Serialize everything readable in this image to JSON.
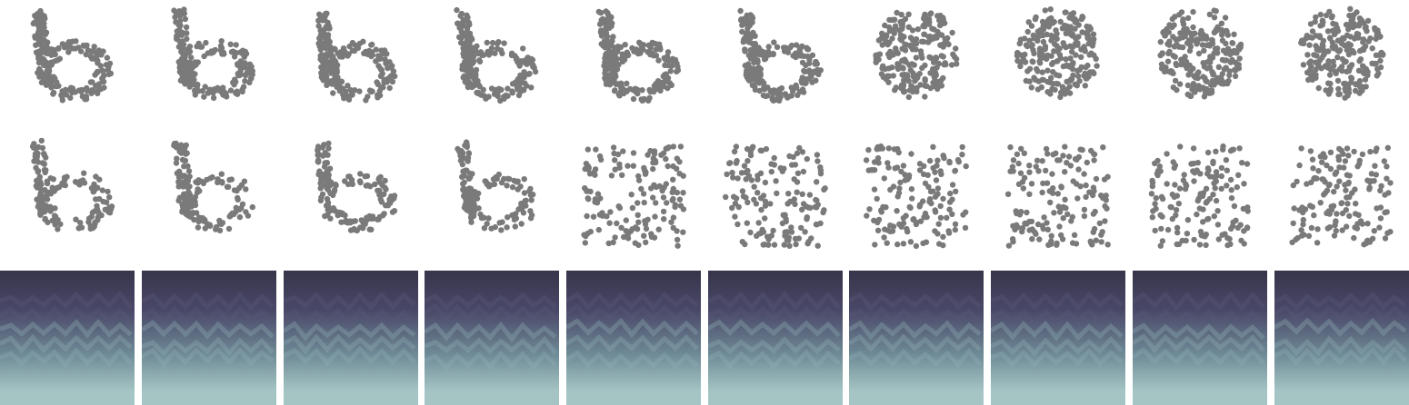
{
  "figure": {
    "columns": 10,
    "rows": 3,
    "dot_color": "#7a7a7a",
    "background": "#ffffff",
    "gradient_colors": [
      "#36354a",
      "#4a4868",
      "#6e8a96",
      "#a5c5c5"
    ]
  },
  "rows": [
    {
      "kind": "point-cloud",
      "shape_sequence": [
        "digit-6",
        "digit-6",
        "digit-6",
        "digit-6",
        "digit-6",
        "digit-6",
        "blob",
        "blob",
        "blob",
        "blob"
      ],
      "points_per_panel": 230
    },
    {
      "kind": "point-cloud",
      "shape_sequence": [
        "digit-6",
        "digit-6",
        "digit-6",
        "digit-6",
        "scatter",
        "scatter",
        "scatter",
        "scatter",
        "scatter",
        "scatter"
      ],
      "points_per_panel": 150
    },
    {
      "kind": "gradient-texture",
      "panels": 10
    }
  ]
}
